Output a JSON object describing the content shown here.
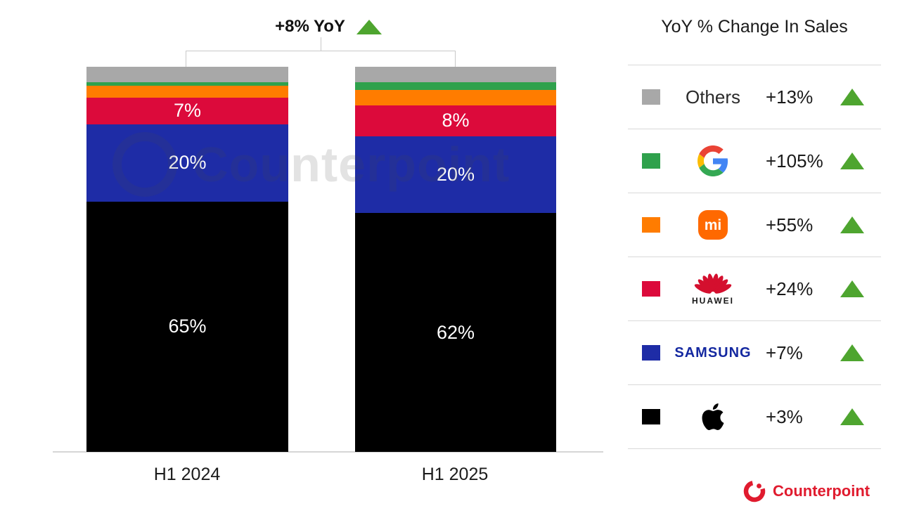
{
  "title": {
    "text": "+8% YoY",
    "arrow": "up-triangle"
  },
  "watermark": {
    "text": "Counterpoint"
  },
  "footer": {
    "brand": "Counterpoint"
  },
  "legend": {
    "title": "YoY % Change In Sales",
    "rows": [
      {
        "brand": "Others",
        "logo": "others-text",
        "swatch_color": "#a8a8a8",
        "change": "+13%",
        "arrow": "up-triangle"
      },
      {
        "brand": "Google",
        "logo": "google-logo",
        "swatch_color": "#2fa14c",
        "change": "+105%",
        "arrow": "up-triangle"
      },
      {
        "brand": "Xiaomi",
        "logo": "xiaomi-logo",
        "swatch_color": "#ff7c00",
        "change": "+55%",
        "arrow": "up-triangle"
      },
      {
        "brand": "Huawei",
        "logo": "huawei-logo",
        "swatch_color": "#dc0a3b",
        "change": "+24%",
        "arrow": "up-triangle"
      },
      {
        "brand": "Samsung",
        "logo": "samsung-logo",
        "swatch_color": "#1e2ca6",
        "change": "+7%",
        "arrow": "up-triangle"
      },
      {
        "brand": "Apple",
        "logo": "apple-logo",
        "swatch_color": "#000000",
        "change": "+3%",
        "arrow": "up-triangle"
      }
    ]
  },
  "chart_data": {
    "type": "bar",
    "subtype": "stacked-100-percent",
    "title": "+8% YoY",
    "legend_title": "YoY % Change In Sales",
    "categories": [
      "H1 2024",
      "H1 2025"
    ],
    "stack_order": "top-to-bottom",
    "series": [
      {
        "name": "Others",
        "color": "#a8a8a8",
        "values": [
          4,
          4
        ],
        "labels": [
          "",
          ""
        ]
      },
      {
        "name": "Google",
        "color": "#2fa14c",
        "values": [
          1,
          2
        ],
        "labels": [
          "",
          ""
        ]
      },
      {
        "name": "Xiaomi",
        "color": "#ff7c00",
        "values": [
          3,
          4
        ],
        "labels": [
          "",
          ""
        ]
      },
      {
        "name": "Huawei",
        "color": "#dc0a3b",
        "values": [
          7,
          8
        ],
        "labels": [
          "7%",
          "8%"
        ]
      },
      {
        "name": "Samsung",
        "color": "#1e2ca6",
        "values": [
          20,
          20
        ],
        "labels": [
          "20%",
          "20%"
        ]
      },
      {
        "name": "Apple",
        "color": "#000000",
        "values": [
          65,
          62
        ],
        "labels": [
          "65%",
          "62%"
        ]
      }
    ],
    "yoy_changes": {
      "Others": "+13%",
      "Google": "+105%",
      "Xiaomi": "+55%",
      "Huawei": "+24%",
      "Samsung": "+7%",
      "Apple": "+3%"
    },
    "total_label": "+8% YoY",
    "grid": "off",
    "legend_position": "right"
  },
  "colors": {
    "up_arrow_green": "#4ea52f",
    "divider_gray": "#d9d9d9",
    "axis_gray": "#d6d6d6",
    "counterpoint_red": "#e01b2e",
    "samsung_blue": "#1428a0",
    "xiaomi_orange": "#ff6900"
  }
}
